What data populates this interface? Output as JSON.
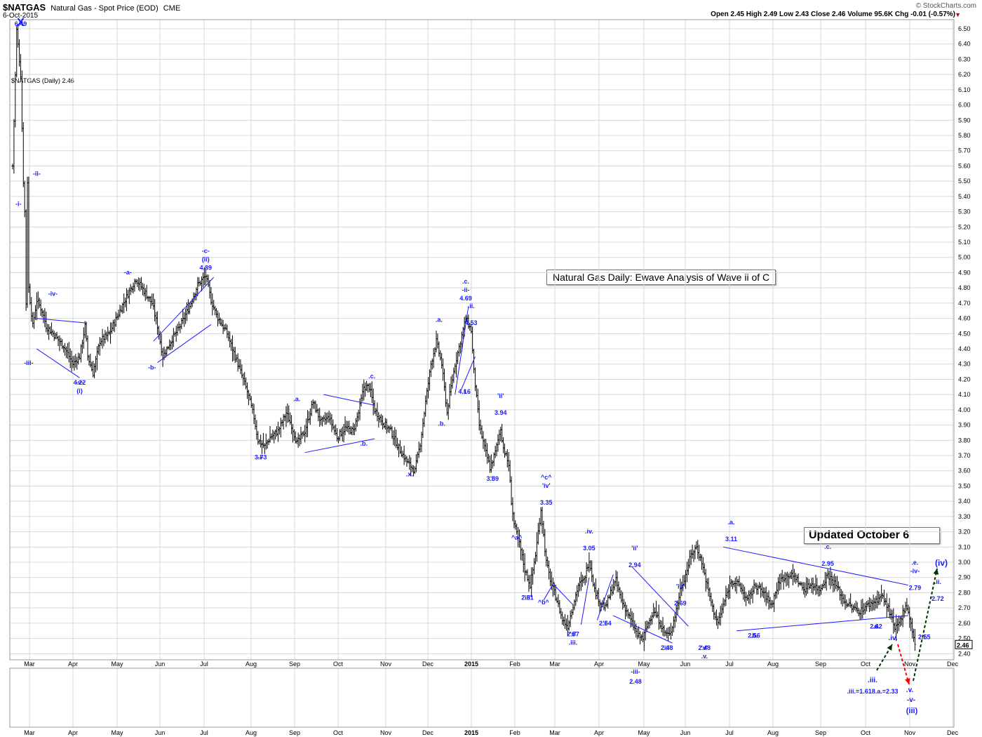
{
  "header": {
    "symbol": "$NATGAS",
    "name": "Natural Gas - Spot Price (EOD)",
    "exchange": "CME",
    "date": "6-Oct-2015",
    "quote": "Open 2.45  High 2.49  Low 2.43  Close 2.46  Volume 95.6K  Chg -0.01 (-0.57%)",
    "watermark": "© StockCharts.com",
    "legend": "$NATGAS (Daily) 2.46",
    "last_price_tag": "2.46"
  },
  "titles": {
    "main": "Natural Gas Daily: Ewave Analysis of Wave ii of C",
    "updated": "Updated October 6"
  },
  "colors": {
    "wave_label": "#1a1aff",
    "candle": "#000000",
    "projection_up": "#003300",
    "projection_down": "#ff0000",
    "grid": "#d8d8d8"
  },
  "chart_data": {
    "type": "ohlc-bar",
    "title": "Natural Gas Daily: Ewave Analysis of Wave ii of C",
    "ylim": [
      2.36,
      6.56
    ],
    "y_ticks": [
      6.5,
      6.4,
      6.3,
      6.2,
      6.1,
      6.0,
      5.9,
      5.8,
      5.7,
      5.6,
      5.5,
      5.4,
      5.3,
      5.2,
      5.1,
      5.0,
      4.9,
      4.8,
      4.7,
      4.6,
      4.5,
      4.4,
      4.3,
      4.2,
      4.1,
      4.0,
      3.9,
      3.8,
      3.7,
      3.6,
      3.5,
      3.4,
      3.3,
      3.2,
      3.1,
      3.0,
      2.9,
      2.8,
      2.7,
      2.6,
      2.5,
      2.4
    ],
    "x_labels": [
      "Mar",
      "Apr",
      "May",
      "Jun",
      "Jul",
      "Aug",
      "Sep",
      "Oct",
      "Nov",
      "Dec",
      "2015",
      "Feb",
      "Mar",
      "Apr",
      "May",
      "Jun",
      "Jul",
      "Aug",
      "Sep",
      "Oct",
      "Nov",
      "Dec"
    ],
    "grid": true,
    "path": [
      [
        0,
        5.6
      ],
      [
        3,
        6.49
      ],
      [
        6,
        6.2
      ],
      [
        8,
        5.5
      ],
      [
        9,
        5.3
      ],
      [
        10,
        4.7
      ],
      [
        11,
        5.5
      ],
      [
        12,
        4.8
      ],
      [
        15,
        4.55
      ],
      [
        18,
        4.72
      ],
      [
        22,
        4.65
      ],
      [
        25,
        4.55
      ],
      [
        30,
        4.5
      ],
      [
        38,
        4.42
      ],
      [
        45,
        4.3
      ],
      [
        50,
        4.35
      ],
      [
        54,
        4.55
      ],
      [
        56,
        4.35
      ],
      [
        60,
        4.24
      ],
      [
        65,
        4.45
      ],
      [
        72,
        4.5
      ],
      [
        80,
        4.65
      ],
      [
        86,
        4.76
      ],
      [
        92,
        4.86
      ],
      [
        98,
        4.78
      ],
      [
        104,
        4.7
      ],
      [
        108,
        4.55
      ],
      [
        112,
        4.35
      ],
      [
        118,
        4.45
      ],
      [
        125,
        4.55
      ],
      [
        132,
        4.68
      ],
      [
        138,
        4.82
      ],
      [
        144,
        4.88
      ],
      [
        148,
        4.72
      ],
      [
        152,
        4.62
      ],
      [
        160,
        4.5
      ],
      [
        168,
        4.3
      ],
      [
        175,
        4.12
      ],
      [
        180,
        3.95
      ],
      [
        183,
        3.8
      ],
      [
        188,
        3.76
      ],
      [
        192,
        3.82
      ],
      [
        198,
        3.86
      ],
      [
        204,
        3.98
      ],
      [
        208,
        3.9
      ],
      [
        212,
        3.78
      ],
      [
        218,
        3.86
      ],
      [
        224,
        4.05
      ],
      [
        230,
        3.92
      ],
      [
        236,
        3.95
      ],
      [
        242,
        3.82
      ],
      [
        248,
        3.88
      ],
      [
        254,
        3.86
      ],
      [
        258,
        3.98
      ],
      [
        262,
        4.15
      ],
      [
        266,
        4.15
      ],
      [
        270,
        4.0
      ],
      [
        276,
        3.92
      ],
      [
        282,
        3.86
      ],
      [
        288,
        3.75
      ],
      [
        294,
        3.66
      ],
      [
        300,
        3.6
      ],
      [
        304,
        3.78
      ],
      [
        308,
        4.05
      ],
      [
        312,
        4.3
      ],
      [
        316,
        4.45
      ],
      [
        320,
        4.3
      ],
      [
        324,
        3.98
      ],
      [
        326,
        4.1
      ],
      [
        330,
        4.3
      ],
      [
        334,
        4.45
      ],
      [
        338,
        4.6
      ],
      [
        342,
        4.52
      ],
      [
        344,
        4.25
      ],
      [
        348,
        3.9
      ],
      [
        352,
        3.75
      ],
      [
        356,
        3.62
      ],
      [
        360,
        3.72
      ],
      [
        364,
        3.88
      ],
      [
        366,
        3.75
      ],
      [
        370,
        3.64
      ],
      [
        372,
        3.4
      ],
      [
        374,
        3.25
      ],
      [
        378,
        3.12
      ],
      [
        382,
        2.95
      ],
      [
        386,
        2.85
      ],
      [
        390,
        3.05
      ],
      [
        394,
        3.35
      ],
      [
        398,
        3.0
      ],
      [
        402,
        2.85
      ],
      [
        406,
        2.75
      ],
      [
        410,
        2.62
      ],
      [
        414,
        2.58
      ],
      [
        418,
        2.72
      ],
      [
        422,
        2.85
      ],
      [
        426,
        2.88
      ],
      [
        430,
        3.02
      ],
      [
        434,
        2.82
      ],
      [
        438,
        2.74
      ],
      [
        442,
        2.7
      ],
      [
        446,
        2.8
      ],
      [
        450,
        2.88
      ],
      [
        454,
        2.75
      ],
      [
        458,
        2.68
      ],
      [
        462,
        2.6
      ],
      [
        466,
        2.52
      ],
      [
        470,
        2.5
      ],
      [
        474,
        2.6
      ],
      [
        478,
        2.68
      ],
      [
        482,
        2.62
      ],
      [
        486,
        2.54
      ],
      [
        490,
        2.52
      ],
      [
        494,
        2.65
      ],
      [
        498,
        2.82
      ],
      [
        502,
        2.92
      ],
      [
        506,
        3.05
      ],
      [
        510,
        3.1
      ],
      [
        514,
        3.0
      ],
      [
        518,
        2.85
      ],
      [
        522,
        2.7
      ],
      [
        526,
        2.6
      ],
      [
        530,
        2.72
      ],
      [
        536,
        2.88
      ],
      [
        542,
        2.85
      ],
      [
        548,
        2.75
      ],
      [
        554,
        2.85
      ],
      [
        560,
        2.8
      ],
      [
        566,
        2.72
      ],
      [
        572,
        2.88
      ],
      [
        578,
        2.92
      ],
      [
        584,
        2.9
      ],
      [
        590,
        2.82
      ],
      [
        596,
        2.86
      ],
      [
        602,
        2.82
      ],
      [
        608,
        2.92
      ],
      [
        614,
        2.85
      ],
      [
        620,
        2.75
      ],
      [
        626,
        2.7
      ],
      [
        632,
        2.68
      ],
      [
        638,
        2.72
      ],
      [
        644,
        2.75
      ],
      [
        648,
        2.78
      ],
      [
        652,
        2.72
      ],
      [
        656,
        2.62
      ],
      [
        658,
        2.55
      ],
      [
        662,
        2.62
      ],
      [
        666,
        2.72
      ],
      [
        668,
        2.68
      ],
      [
        671,
        2.55
      ],
      [
        673,
        2.46
      ]
    ],
    "price_labels": [
      {
        "t": 6,
        "p": 6.49,
        "text": "6.49",
        "pos": "above"
      },
      {
        "t": 50,
        "p": 4.22,
        "text": "4.22",
        "pos": "below"
      },
      {
        "t": 144,
        "p": 4.89,
        "text": "4.89",
        "pos": "above"
      },
      {
        "t": 185,
        "p": 3.73,
        "text": "3.73",
        "pos": "below"
      },
      {
        "t": 338,
        "p": 4.69,
        "text": "4.69",
        "pos": "above"
      },
      {
        "t": 342,
        "p": 4.53,
        "text": "4.53",
        "pos": "above"
      },
      {
        "t": 337,
        "p": 4.16,
        "text": "4.16",
        "pos": "below"
      },
      {
        "t": 364,
        "p": 3.94,
        "text": "3.94",
        "pos": "above"
      },
      {
        "t": 358,
        "p": 3.59,
        "text": "3.59",
        "pos": "below"
      },
      {
        "t": 398,
        "p": 3.35,
        "text": "3.35",
        "pos": "above"
      },
      {
        "t": 384,
        "p": 2.81,
        "text": "2.81",
        "pos": "below"
      },
      {
        "t": 430,
        "p": 3.05,
        "text": "3.05",
        "pos": "above"
      },
      {
        "t": 418,
        "p": 2.57,
        "text": "2.57",
        "pos": "below"
      },
      {
        "t": 464,
        "p": 2.94,
        "text": "2.94",
        "pos": "above"
      },
      {
        "t": 442,
        "p": 2.64,
        "text": "2.64",
        "pos": "below"
      },
      {
        "t": 498,
        "p": 2.69,
        "text": "2.69",
        "pos": "above"
      },
      {
        "t": 488,
        "p": 2.48,
        "text": "2.48",
        "pos": "below"
      },
      {
        "t": 516,
        "p": 2.48,
        "text": "2.48",
        "pos": "below"
      },
      {
        "t": 536,
        "p": 3.11,
        "text": "3.11",
        "pos": "above"
      },
      {
        "t": 553,
        "p": 2.56,
        "text": "2.56",
        "pos": "below"
      },
      {
        "t": 608,
        "p": 2.95,
        "text": "2.95",
        "pos": "above"
      },
      {
        "t": 644,
        "p": 2.62,
        "text": "2.62",
        "pos": "below"
      },
      {
        "t": 673,
        "p": 2.79,
        "text": "2.79",
        "pos": "above"
      },
      {
        "t": 690,
        "p": 2.72,
        "text": "2.72",
        "pos": "above"
      },
      {
        "t": 680,
        "p": 2.55,
        "text": "2.55",
        "pos": "below"
      }
    ],
    "wave_labels": [
      {
        "t": 6,
        "p": 6.49,
        "text": "X",
        "pos": "above",
        "size": "big"
      },
      {
        "t": 0,
        "p": 5.35,
        "text": "-i-",
        "pos": "right"
      },
      {
        "t": 13,
        "p": 5.55,
        "text": "-ii-",
        "pos": "right"
      },
      {
        "t": 12,
        "p": 4.35,
        "text": "-iii-",
        "pos": "below"
      },
      {
        "t": 30,
        "p": 4.72,
        "text": "-iv-",
        "pos": "above"
      },
      {
        "t": 50,
        "p": 4.22,
        "text": "-v-",
        "pos": "below"
      },
      {
        "t": 50,
        "p": 4.22,
        "text": "(i)",
        "pos": "below2"
      },
      {
        "t": 86,
        "p": 4.86,
        "text": "-a-",
        "pos": "above"
      },
      {
        "t": 104,
        "p": 4.32,
        "text": "-b-",
        "pos": "below"
      },
      {
        "t": 144,
        "p": 4.89,
        "text": "(ii)",
        "pos": "above2"
      },
      {
        "t": 144,
        "p": 4.89,
        "text": "-c-",
        "pos": "above3"
      },
      {
        "t": 185,
        "p": 3.73,
        "text": "-i-",
        "pos": "below"
      },
      {
        "t": 212,
        "p": 4.03,
        "text": ".a.",
        "pos": "above"
      },
      {
        "t": 262,
        "p": 3.82,
        "text": ".b.",
        "pos": "below"
      },
      {
        "t": 268,
        "p": 4.18,
        "text": ".c.",
        "pos": "above"
      },
      {
        "t": 296,
        "p": 3.62,
        "text": ".x.",
        "pos": "below"
      },
      {
        "t": 318,
        "p": 4.55,
        "text": ".a.",
        "pos": "above"
      },
      {
        "t": 320,
        "p": 3.95,
        "text": ".b.",
        "pos": "below"
      },
      {
        "t": 338,
        "p": 4.69,
        "text": "-ii-",
        "pos": "above2"
      },
      {
        "t": 338,
        "p": 4.69,
        "text": ".c.",
        "pos": "above3"
      },
      {
        "t": 342,
        "p": 4.53,
        "text": ".ii.",
        "pos": "above3"
      },
      {
        "t": 337,
        "p": 4.16,
        "text": ".i.",
        "pos": "below"
      },
      {
        "t": 364,
        "p": 3.94,
        "text": "'ii'",
        "pos": "above3"
      },
      {
        "t": 358,
        "p": 3.59,
        "text": "'i'",
        "pos": "below"
      },
      {
        "t": 398,
        "p": 3.35,
        "text": "'iv'",
        "pos": "above3"
      },
      {
        "t": 398,
        "p": 3.35,
        "text": "^c^",
        "pos": "above4"
      },
      {
        "t": 376,
        "p": 3.12,
        "text": "^a^",
        "pos": "above"
      },
      {
        "t": 384,
        "p": 2.81,
        "text": "'iii'",
        "pos": "below"
      },
      {
        "t": 396,
        "p": 2.78,
        "text": "^b^",
        "pos": "below"
      },
      {
        "t": 418,
        "p": 2.57,
        "text": "'v'",
        "pos": "below"
      },
      {
        "t": 418,
        "p": 2.57,
        "text": ".iii.",
        "pos": "below2"
      },
      {
        "t": 430,
        "p": 3.05,
        "text": ".iv.",
        "pos": "above3"
      },
      {
        "t": 442,
        "p": 2.64,
        "text": "'i'",
        "pos": "below"
      },
      {
        "t": 464,
        "p": 2.94,
        "text": "'ii'",
        "pos": "above3"
      },
      {
        "t": 498,
        "p": 2.69,
        "text": "'iv'",
        "pos": "above3"
      },
      {
        "t": 488,
        "p": 2.48,
        "text": "'iii'",
        "pos": "below"
      },
      {
        "t": 516,
        "p": 2.48,
        "text": "'v'",
        "pos": "below"
      },
      {
        "t": 516,
        "p": 2.48,
        "text": ".v.",
        "pos": "below2"
      },
      {
        "t": 536,
        "p": 3.11,
        "text": ".a.",
        "pos": "above3"
      },
      {
        "t": 553,
        "p": 2.56,
        "text": ".b.",
        "pos": "below"
      },
      {
        "t": 608,
        "p": 2.95,
        "text": ".c.",
        "pos": "above3"
      },
      {
        "t": 644,
        "p": 2.62,
        "text": ".d.",
        "pos": "below"
      },
      {
        "t": 673,
        "p": 2.79,
        "text": "-iv-",
        "pos": "above3"
      },
      {
        "t": 673,
        "p": 2.79,
        "text": ".e.",
        "pos": "above4"
      },
      {
        "t": 690,
        "p": 2.72,
        "text": ".ii.",
        "pos": "above3"
      },
      {
        "t": 680,
        "p": 2.55,
        "text": ".i.",
        "pos": "below"
      }
    ],
    "lower_labels": {
      "iii_2015": "-iii-",
      "iii_2015_price": "2.48",
      "iii_proj": ".iii.",
      "iii_proj_calc": ".iii.=1.618.a.=2.33",
      "iv_proj": ".iv.",
      "v_proj": ".v.",
      "v_proj2": "-v-",
      "iii_paren": "(iii)",
      "iv_paren": "(iv)"
    }
  }
}
